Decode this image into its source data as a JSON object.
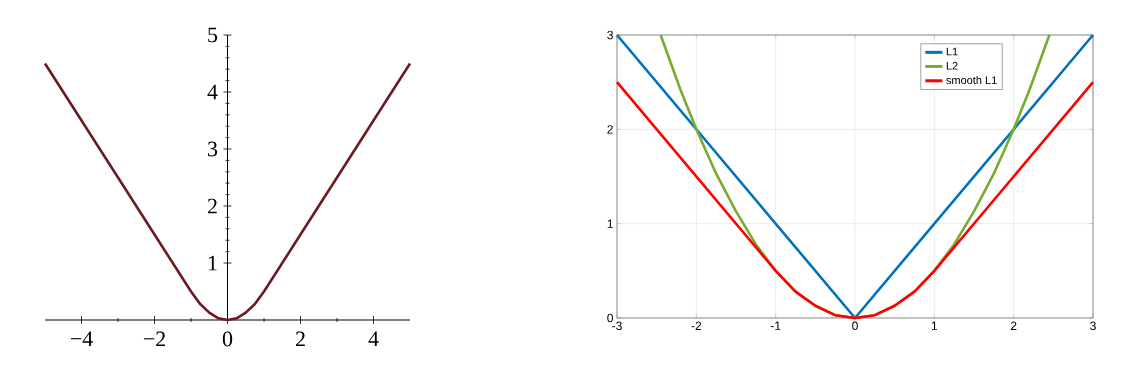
{
  "chart_data": [
    {
      "type": "line",
      "xlim": [
        -5,
        5
      ],
      "ylim": [
        0,
        5
      ],
      "xticks": [
        {
          "value": -4,
          "label": "−4"
        },
        {
          "value": -2,
          "label": "−2"
        },
        0,
        2,
        4
      ],
      "yticks": [
        1,
        2,
        3,
        4,
        5
      ],
      "series": [
        {
          "color": "#6b1a22",
          "x": [
            -5,
            -4,
            -3,
            -2,
            -1,
            -0.75,
            -0.5,
            -0.25,
            0,
            0.25,
            0.5,
            0.75,
            1,
            2,
            3,
            4,
            5
          ],
          "values": [
            4.5,
            3.5,
            2.5,
            1.5,
            0.5,
            0.28,
            0.13,
            0.03,
            0,
            0.03,
            0.13,
            0.28,
            0.5,
            1.5,
            2.5,
            3.5,
            4.5
          ]
        }
      ]
    },
    {
      "type": "line",
      "xlim": [
        -3,
        3
      ],
      "ylim": [
        0,
        3
      ],
      "xticks": [
        -3,
        -2,
        -1,
        0,
        1,
        2,
        3
      ],
      "yticks": [
        0,
        1,
        2,
        3
      ],
      "grid": true,
      "legend": "top right",
      "series": [
        {
          "name": "L1",
          "color": "#0072bd",
          "x": [
            -3,
            0,
            3
          ],
          "values": [
            3,
            0,
            3
          ]
        },
        {
          "name": "L2",
          "color": "#77ac30",
          "x": [
            -2.45,
            -2.2,
            -2,
            -1.75,
            -1.5,
            -1.25,
            -1,
            -0.75,
            -0.5,
            -0.25,
            0,
            0.25,
            0.5,
            0.75,
            1,
            1.25,
            1.5,
            1.75,
            2,
            2.2,
            2.45
          ],
          "values": [
            3,
            2.42,
            2,
            1.53,
            1.13,
            0.78,
            0.5,
            0.28,
            0.13,
            0.03,
            0,
            0.03,
            0.13,
            0.28,
            0.5,
            0.78,
            1.13,
            1.53,
            2,
            2.42,
            3
          ]
        },
        {
          "name": "smooth L1",
          "color": "#ff0000",
          "x": [
            -3,
            -2,
            -1,
            -0.75,
            -0.5,
            -0.25,
            0,
            0.25,
            0.5,
            0.75,
            1,
            2,
            3
          ],
          "values": [
            2.5,
            1.5,
            0.5,
            0.28,
            0.13,
            0.03,
            0,
            0.03,
            0.13,
            0.28,
            0.5,
            1.5,
            2.5
          ]
        }
      ]
    }
  ]
}
